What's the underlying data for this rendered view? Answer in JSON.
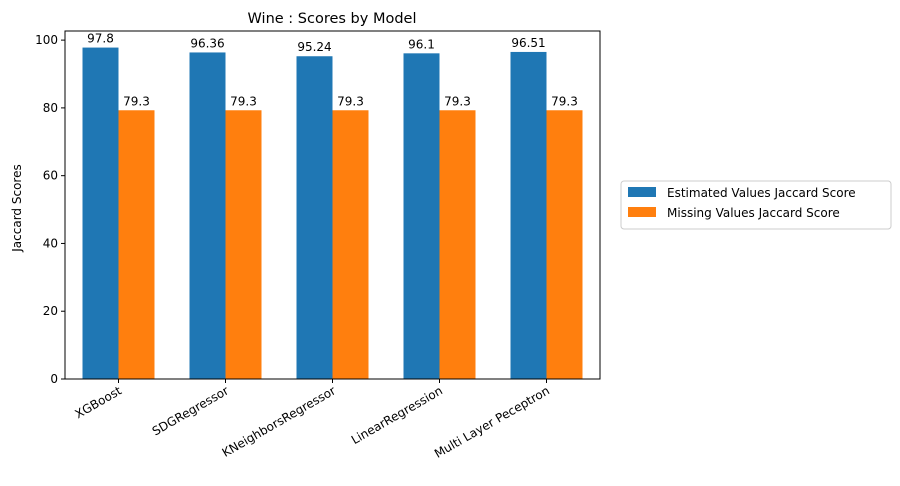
{
  "chart_data": {
    "type": "bar",
    "title": "Wine : Scores by Model",
    "xlabel": "",
    "ylabel": "Jaccard Scores",
    "categories": [
      "XGBoost",
      "SDGRegressor",
      "KNeighborsRegressor",
      "LinearRegression",
      "Multi Layer Peceptron"
    ],
    "series": [
      {
        "name": "Estimated Values Jaccard Score",
        "values": [
          97.8,
          96.36,
          95.24,
          96.1,
          96.51
        ],
        "labels": [
          "97.8",
          "96.36",
          "95.24",
          "96.1",
          "96.51"
        ],
        "color": "#1f77b4"
      },
      {
        "name": "Missing Values Jaccard Score",
        "values": [
          79.3,
          79.3,
          79.3,
          79.3,
          79.3
        ],
        "labels": [
          "79.3",
          "79.3",
          "79.3",
          "79.3",
          "79.3"
        ],
        "color": "#ff7f0e"
      }
    ],
    "ylim": [
      0,
      102.69
    ],
    "yticks": [
      0,
      20,
      40,
      60,
      80,
      100
    ],
    "grid": false,
    "legend_position": "outside right"
  }
}
